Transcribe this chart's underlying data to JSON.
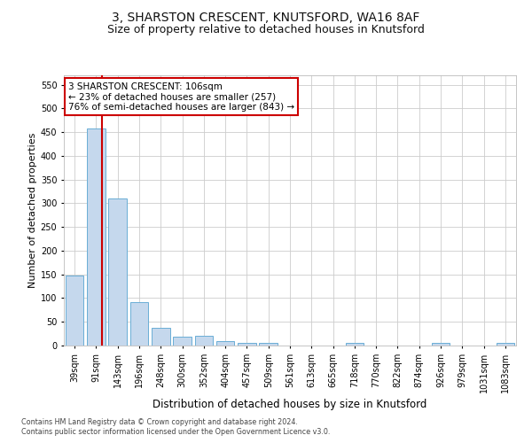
{
  "title_line1": "3, SHARSTON CRESCENT, KNUTSFORD, WA16 8AF",
  "title_line2": "Size of property relative to detached houses in Knutsford",
  "xlabel": "Distribution of detached houses by size in Knutsford",
  "ylabel": "Number of detached properties",
  "footnote1": "Contains HM Land Registry data © Crown copyright and database right 2024.",
  "footnote2": "Contains public sector information licensed under the Open Government Licence v3.0.",
  "bin_labels": [
    "39sqm",
    "91sqm",
    "143sqm",
    "196sqm",
    "248sqm",
    "300sqm",
    "352sqm",
    "404sqm",
    "457sqm",
    "509sqm",
    "561sqm",
    "613sqm",
    "665sqm",
    "718sqm",
    "770sqm",
    "822sqm",
    "874sqm",
    "926sqm",
    "979sqm",
    "1031sqm",
    "1083sqm"
  ],
  "bar_values": [
    148,
    457,
    310,
    92,
    38,
    19,
    20,
    10,
    5,
    6,
    0,
    0,
    0,
    5,
    0,
    0,
    0,
    5,
    0,
    0,
    5
  ],
  "bar_color": "#c5d8ed",
  "bar_edge_color": "#6aaed6",
  "property_line_color": "#cc0000",
  "annotation_text": "3 SHARSTON CRESCENT: 106sqm\n← 23% of detached houses are smaller (257)\n76% of semi-detached houses are larger (843) →",
  "annotation_box_color": "#ffffff",
  "annotation_box_edge_color": "#cc0000",
  "ylim": [
    0,
    570
  ],
  "yticks": [
    0,
    50,
    100,
    150,
    200,
    250,
    300,
    350,
    400,
    450,
    500,
    550
  ],
  "background_color": "#ffffff",
  "grid_color": "#cccccc",
  "title1_fontsize": 10,
  "title2_fontsize": 9,
  "ylabel_fontsize": 8,
  "xlabel_fontsize": 8.5,
  "tick_fontsize": 7,
  "annotation_fontsize": 7.5,
  "footnote_fontsize": 5.8,
  "bar_width": 0.85
}
